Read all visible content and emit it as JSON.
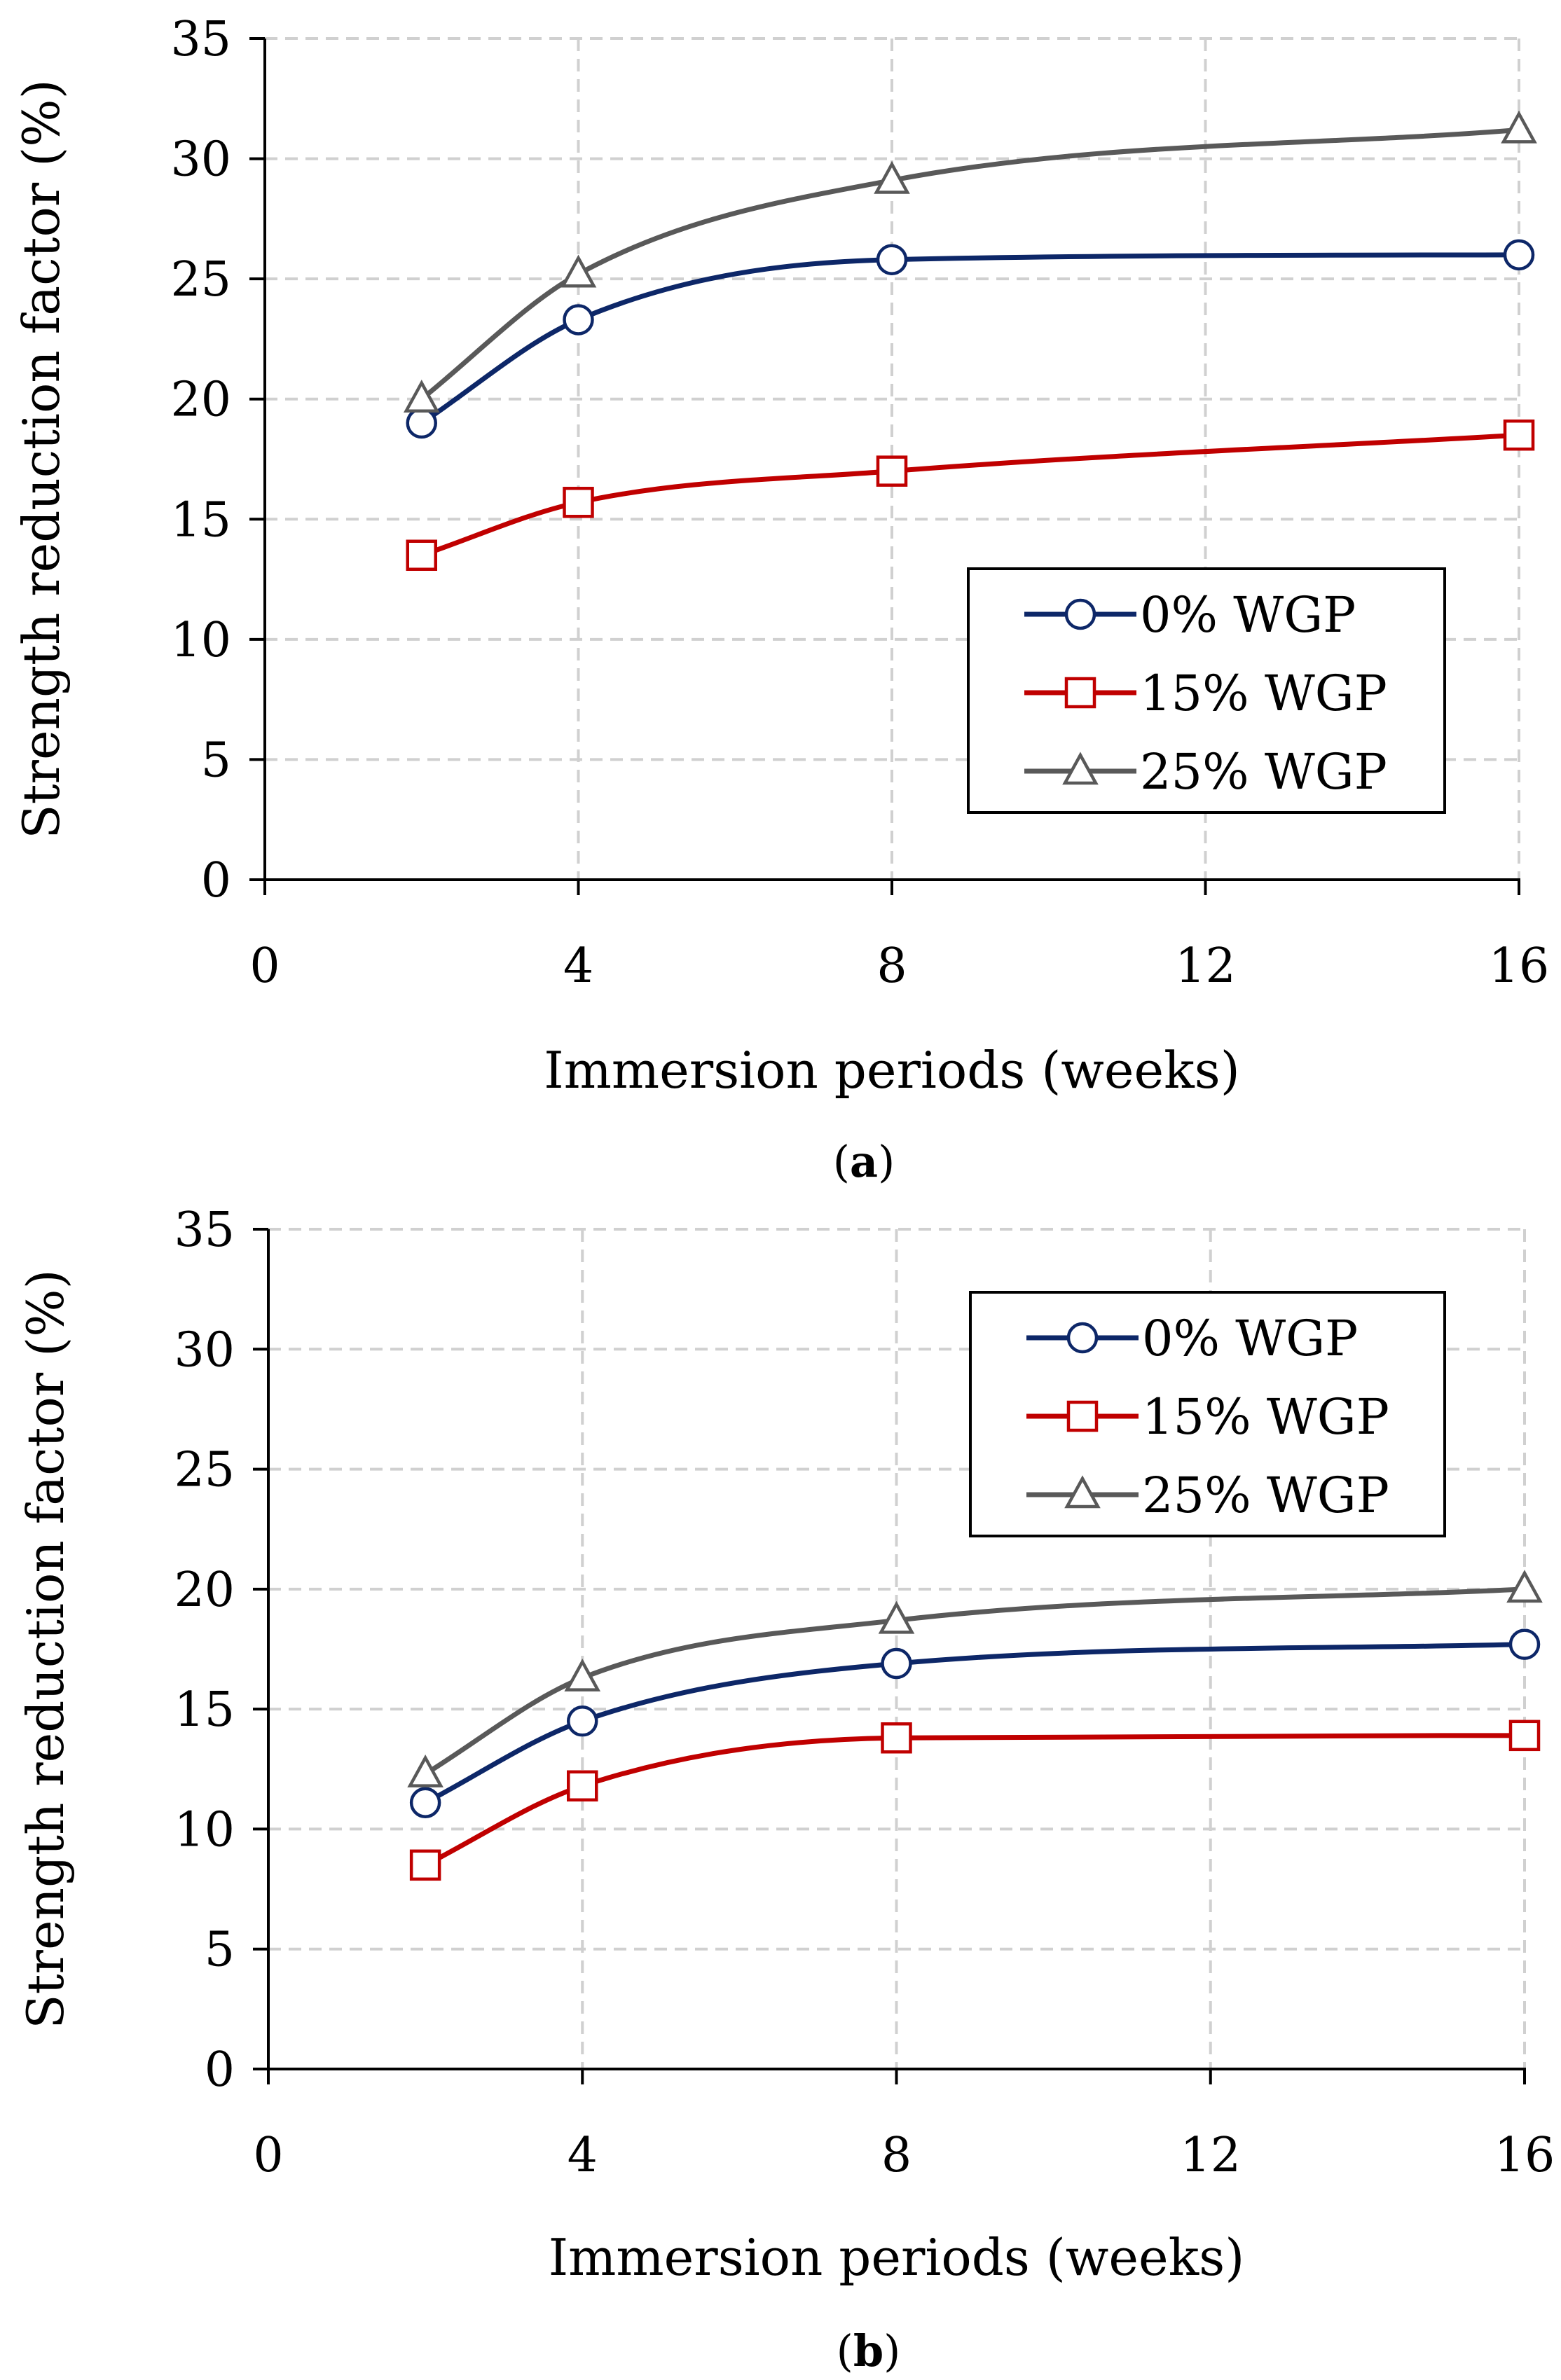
{
  "charts": [
    {
      "caption_letter": "a",
      "chart_data": {
        "type": "line",
        "title": "",
        "xlabel": "Immersion periods (weeks)",
        "ylabel": "Strength reduction factor (%)",
        "xlim": [
          0,
          16
        ],
        "ylim": [
          0,
          35
        ],
        "xticks": [
          0,
          4,
          8,
          12,
          16
        ],
        "yticks": [
          0,
          5,
          10,
          15,
          20,
          25,
          30,
          35
        ],
        "grid": true,
        "legend_position": "right-middle",
        "x": [
          2,
          4,
          8,
          16
        ],
        "series": [
          {
            "name": "0% WGP",
            "marker": "circle",
            "color": "#0d2768",
            "values": [
              19.0,
              23.3,
              25.8,
              26.0
            ]
          },
          {
            "name": "15% WGP",
            "marker": "square",
            "color": "#c00000",
            "values": [
              13.5,
              15.7,
              17.0,
              18.5
            ]
          },
          {
            "name": "25% WGP",
            "marker": "triangle",
            "color": "#595959",
            "values": [
              20.0,
              25.2,
              29.1,
              31.2
            ]
          }
        ]
      }
    },
    {
      "caption_letter": "b",
      "chart_data": {
        "type": "line",
        "title": "",
        "xlabel": "Immersion periods (weeks)",
        "ylabel": "Strength reduction factor (%)",
        "xlim": [
          0,
          16
        ],
        "ylim": [
          0,
          35
        ],
        "xticks": [
          0,
          4,
          8,
          12,
          16
        ],
        "yticks": [
          0,
          5,
          10,
          15,
          20,
          25,
          30,
          35
        ],
        "grid": true,
        "legend_position": "top-right",
        "x": [
          2,
          4,
          8,
          16
        ],
        "series": [
          {
            "name": "0% WGP",
            "marker": "circle",
            "color": "#0d2768",
            "values": [
              11.1,
              14.5,
              16.9,
              17.7
            ]
          },
          {
            "name": "15% WGP",
            "marker": "square",
            "color": "#c00000",
            "values": [
              8.5,
              11.8,
              13.8,
              13.9
            ]
          },
          {
            "name": "25% WGP",
            "marker": "triangle",
            "color": "#595959",
            "values": [
              12.3,
              16.3,
              18.7,
              20.0
            ]
          }
        ]
      }
    }
  ]
}
